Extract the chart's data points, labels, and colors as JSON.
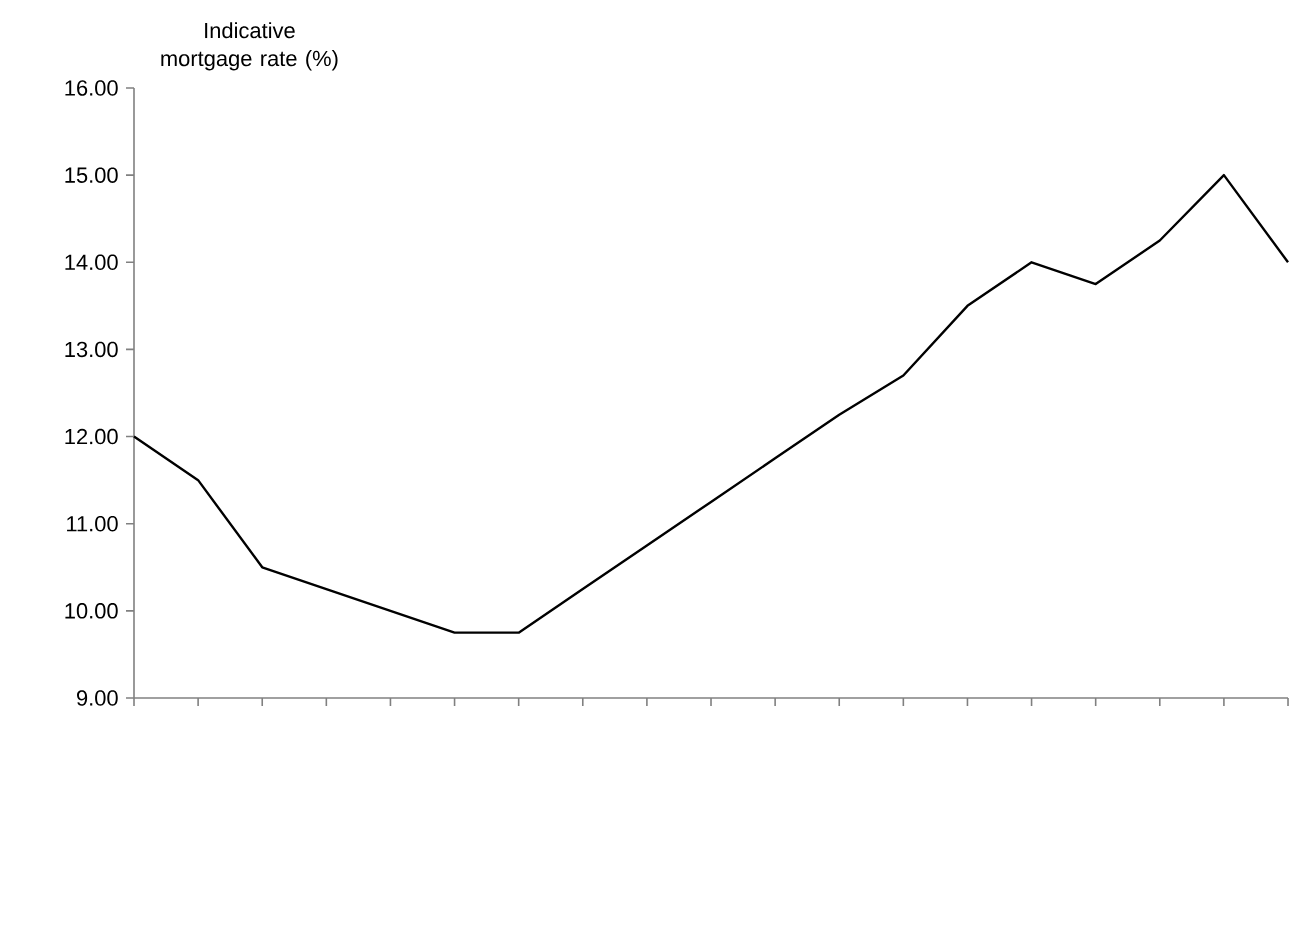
{
  "chart_data": {
    "type": "line",
    "ylabel": "Indicative mortgage rate (%)",
    "categories": [
      null,
      null,
      null,
      null,
      null,
      null,
      null,
      null,
      null,
      null,
      null,
      null,
      null,
      null,
      null,
      null,
      null,
      null,
      null
    ],
    "series": [
      {
        "color": "#000000",
        "values": [
          12.0,
          11.5,
          10.5,
          10.25,
          10.0,
          9.75,
          9.75,
          10.25,
          10.75,
          11.25,
          11.75,
          12.25,
          12.7,
          13.5,
          14.0,
          13.75,
          14.25,
          15.0,
          14.0
        ]
      }
    ],
    "ylim": [
      9,
      16
    ],
    "yticks": [
      {
        "value": 9,
        "label": "9.00"
      },
      {
        "value": 10,
        "label": "10.00"
      },
      {
        "value": 11,
        "label": "11.00"
      },
      {
        "value": 12,
        "label": "12.00"
      },
      {
        "value": 13,
        "label": "13.00"
      },
      {
        "value": 14,
        "label": "14.00"
      },
      {
        "value": 15,
        "label": "15.00"
      },
      {
        "value": 16,
        "label": "16.00"
      }
    ],
    "grid": false,
    "legend": false,
    "marker": "none",
    "line_style": "solid"
  }
}
